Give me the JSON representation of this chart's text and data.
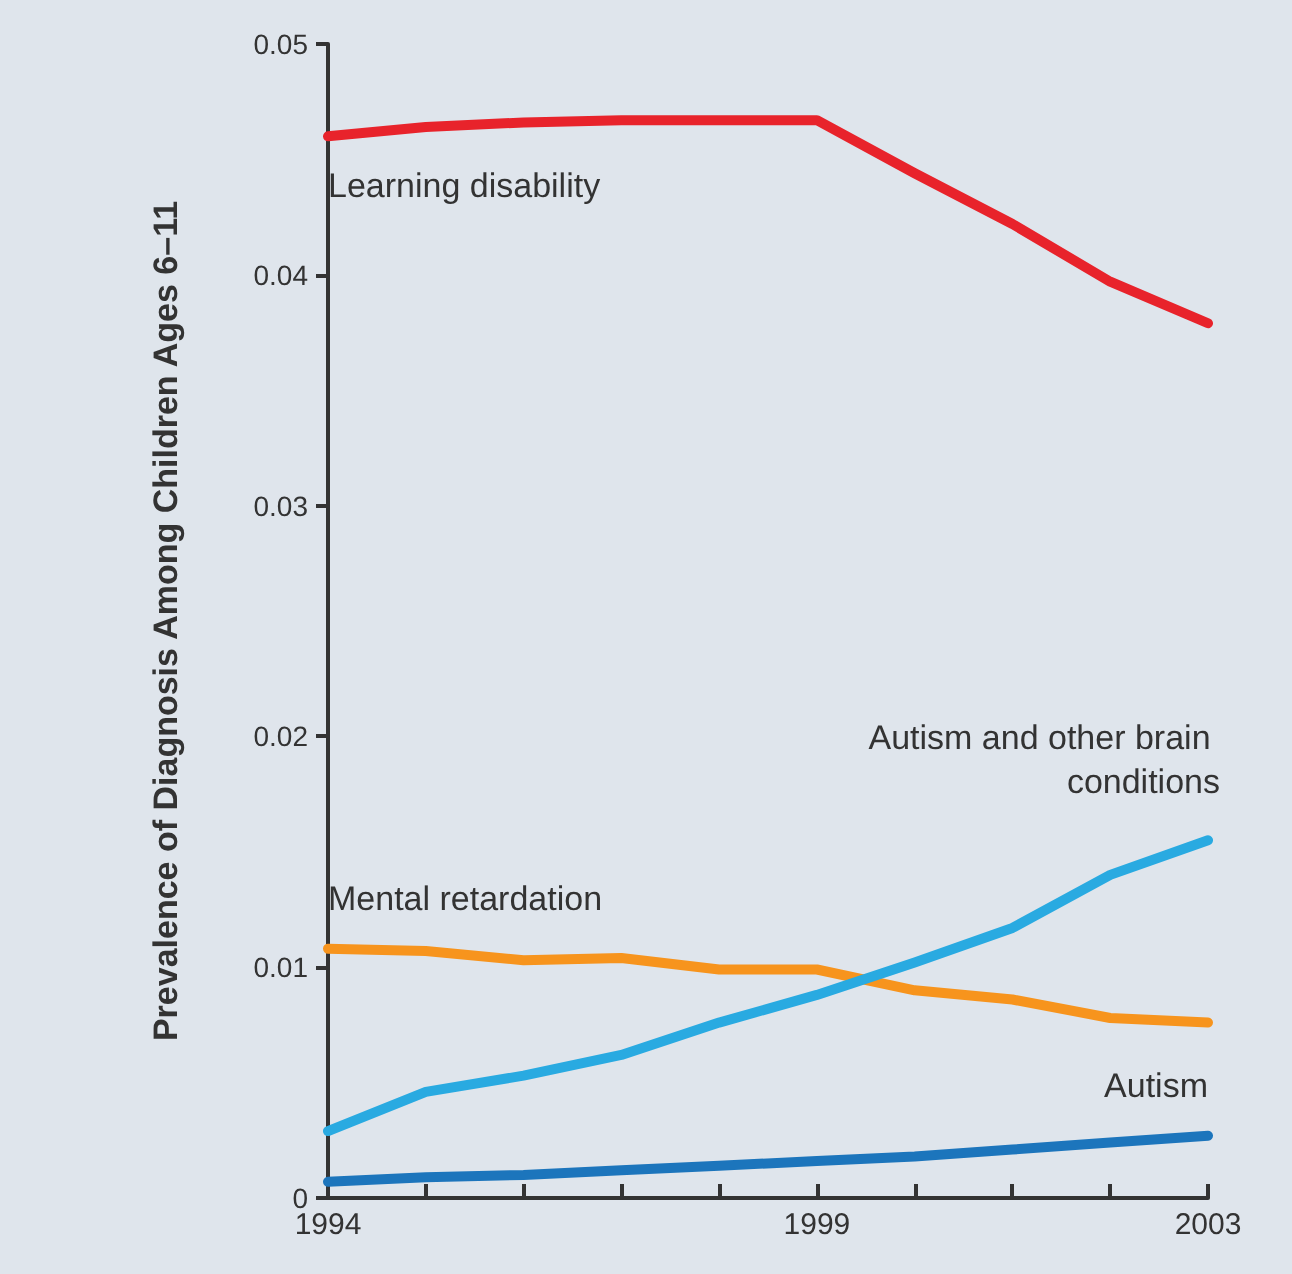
{
  "chart_data": {
    "type": "line",
    "ylabel": "Prevalence of Diagnosis Among Children Ages 6–11",
    "x": [
      1994,
      1995,
      1996,
      1997,
      1998,
      1999,
      2000,
      2001,
      2002,
      2003
    ],
    "series": [
      {
        "name": "Learning disability",
        "color": "#e8232b",
        "values": [
          0.046,
          0.0464,
          0.0466,
          0.0467,
          0.0467,
          0.0467,
          0.0444,
          0.0422,
          0.0397,
          0.0379
        ]
      },
      {
        "name": "Mental retardation",
        "color": "#f7941d",
        "values": [
          0.0108,
          0.0107,
          0.0103,
          0.0104,
          0.0099,
          0.0099,
          0.009,
          0.0086,
          0.0078,
          0.0076
        ]
      },
      {
        "name": "Autism and other brain conditions",
        "color": "#29aae1",
        "values": [
          0.0029,
          0.0046,
          0.0053,
          0.0062,
          0.0076,
          0.0088,
          0.0102,
          0.0117,
          0.014,
          0.0155
        ]
      },
      {
        "name": "Autism",
        "color": "#1c75bc",
        "values": [
          0.0007,
          0.0009,
          0.001,
          0.0012,
          0.0014,
          0.0016,
          0.0018,
          0.0021,
          0.0024,
          0.0027
        ]
      }
    ],
    "xlim": [
      1994,
      2003
    ],
    "xticks": [
      1994,
      {
        "value": 1995,
        "label": null
      },
      {
        "value": 1996,
        "label": null
      },
      {
        "value": 1997,
        "label": null
      },
      {
        "value": 1998,
        "label": null
      },
      1999,
      {
        "value": 2000,
        "label": null
      },
      {
        "value": 2001,
        "label": null
      },
      {
        "value": 2002,
        "label": null
      },
      2003
    ],
    "ylim": [
      0,
      0.05
    ],
    "yticks": [
      0,
      0.01,
      0.02,
      0.03,
      0.04,
      0.05
    ],
    "grid": false,
    "legend": false,
    "marker": "none",
    "line_style": "solid"
  }
}
